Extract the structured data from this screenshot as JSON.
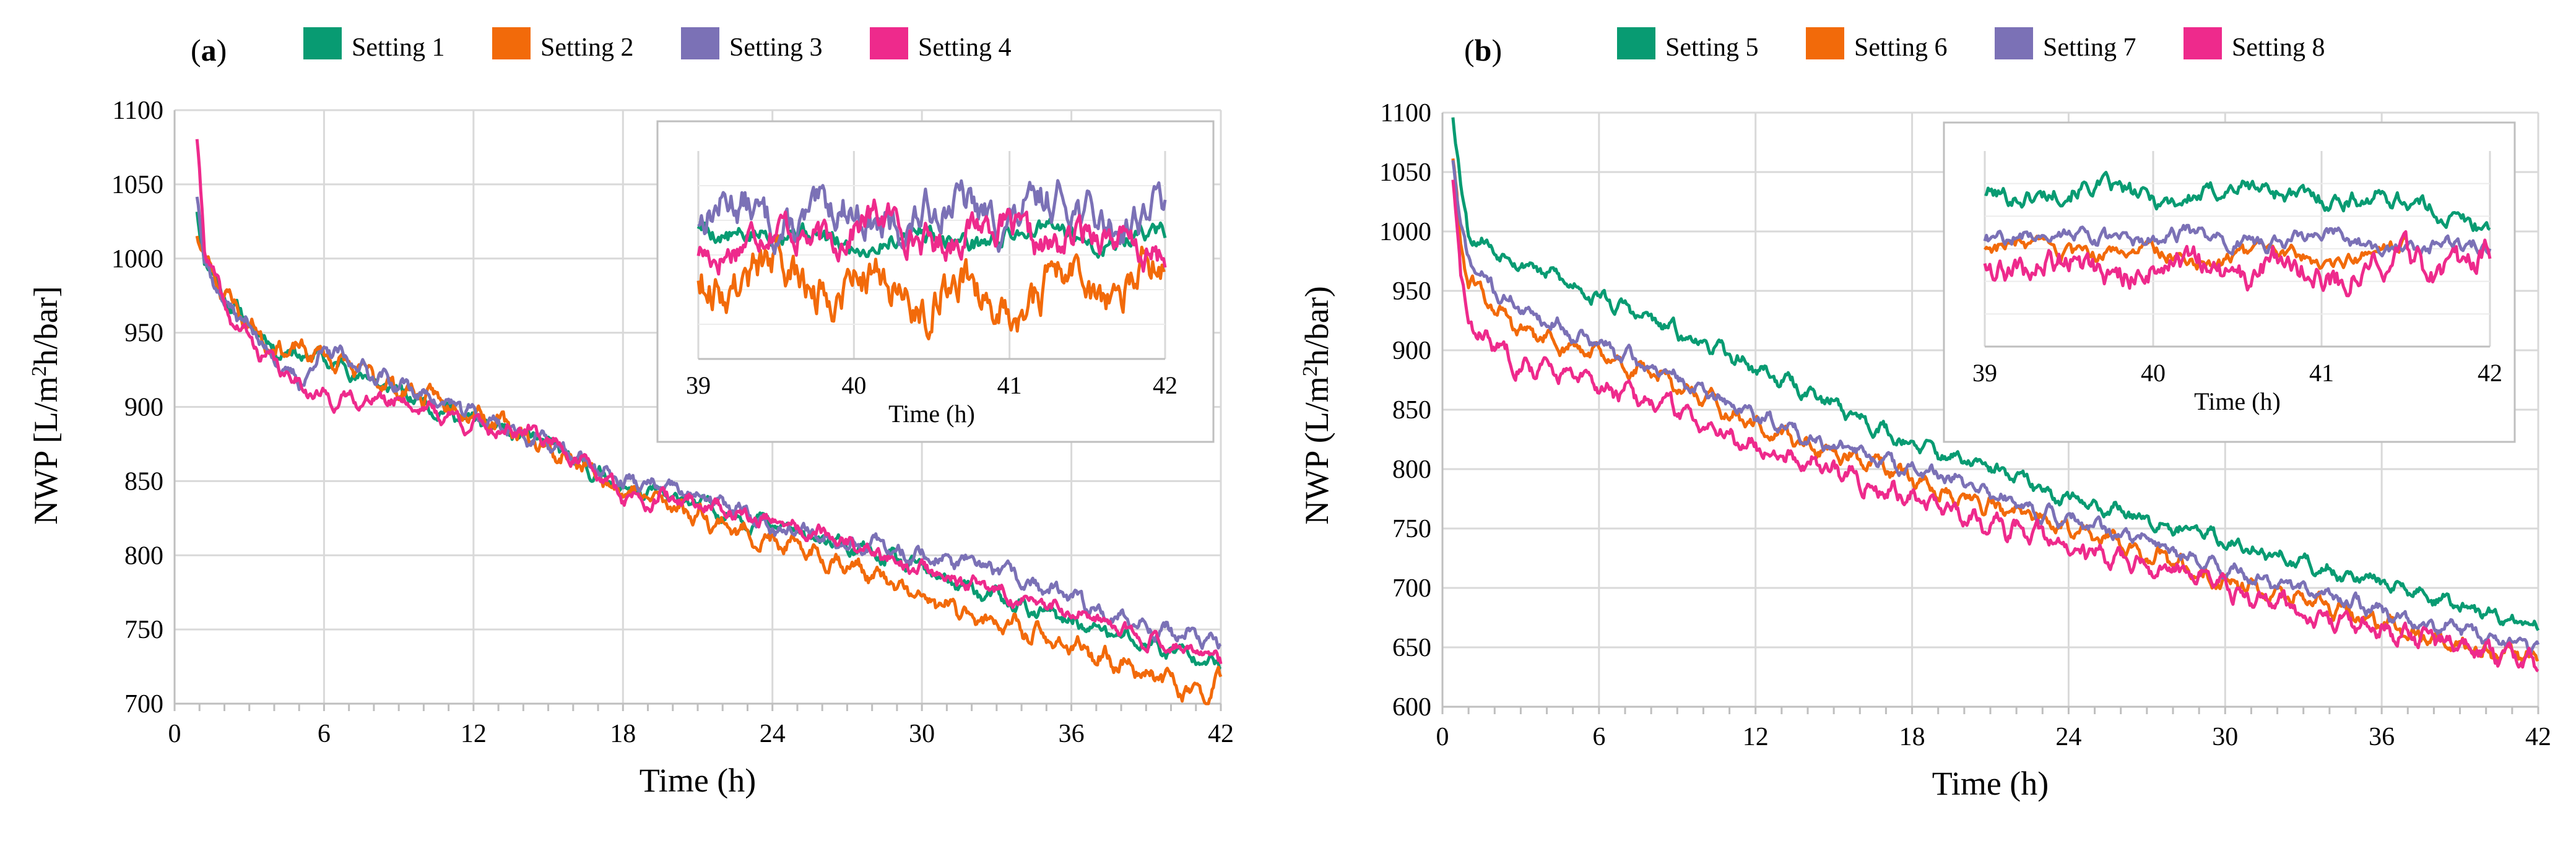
{
  "figure": {
    "description_panels": [
      "a",
      "b"
    ]
  },
  "colors": {
    "setting_1": "#089b72",
    "setting_2": "#f26a0a",
    "setting_3": "#7b71b6",
    "setting_4": "#ee2a8c",
    "setting_5": "#089b72",
    "setting_6": "#f26a0a",
    "setting_7": "#7b71b6",
    "setting_8": "#ee2a8c",
    "grid": "#d9d9d9",
    "axis": "#bfbfbf"
  },
  "chart_data": [
    {
      "type": "line",
      "panel_label": "a",
      "xlabel": "Time (h)",
      "ylabel_prefix": "NWP [L/m",
      "ylabel_sup": "2",
      "ylabel_suffix": "h/bar]",
      "xlim": [
        0,
        42
      ],
      "ylim": [
        700,
        1100
      ],
      "xticks": [
        "0",
        "6",
        "12",
        "18",
        "24",
        "30",
        "36",
        "42"
      ],
      "yticks": [
        "700",
        "750",
        "800",
        "850",
        "900",
        "950",
        "1000",
        "1050",
        "1100"
      ],
      "grid": true,
      "legend_position": "top",
      "series": [
        {
          "name": "Setting 1",
          "color_key": "setting_1",
          "seed": 11,
          "amp": 6,
          "wave": 6,
          "points": [
            [
              0.9,
              1035
            ],
            [
              1.2,
              1000
            ],
            [
              2,
              975
            ],
            [
              3,
              955
            ],
            [
              4,
              940
            ],
            [
              6,
              932
            ],
            [
              9,
              910
            ],
            [
              12,
              890
            ],
            [
              15,
              875
            ],
            [
              18,
              845
            ],
            [
              21,
              835
            ],
            [
              24,
              820
            ],
            [
              27,
              805
            ],
            [
              30,
              790
            ],
            [
              33,
              770
            ],
            [
              36,
              755
            ],
            [
              39,
              740
            ],
            [
              42,
              728
            ]
          ]
        },
        {
          "name": "Setting 2",
          "color_key": "setting_2",
          "seed": 23,
          "amp": 7,
          "wave": 7,
          "points": [
            [
              0.9,
              1020
            ],
            [
              1.2,
              1000
            ],
            [
              2,
              978
            ],
            [
              3,
              955
            ],
            [
              4,
              940
            ],
            [
              6,
              935
            ],
            [
              9,
              912
            ],
            [
              12,
              898
            ],
            [
              15,
              872
            ],
            [
              18,
              845
            ],
            [
              21,
              828
            ],
            [
              24,
              808
            ],
            [
              27,
              795
            ],
            [
              30,
              770
            ],
            [
              33,
              755
            ],
            [
              36,
              738
            ],
            [
              39,
              722
            ],
            [
              41.5,
              704
            ],
            [
              42,
              718
            ]
          ]
        },
        {
          "name": "Setting 3",
          "color_key": "setting_3",
          "seed": 37,
          "amp": 6,
          "wave": 7,
          "points": [
            [
              0.9,
              1045
            ],
            [
              1.2,
              1000
            ],
            [
              2,
              970
            ],
            [
              3,
              955
            ],
            [
              4,
              932
            ],
            [
              5,
              915
            ],
            [
              6,
              938
            ],
            [
              9,
              915
            ],
            [
              12,
              895
            ],
            [
              15,
              875
            ],
            [
              18,
              850
            ],
            [
              21,
              840
            ],
            [
              24,
              820
            ],
            [
              27,
              810
            ],
            [
              30,
              800
            ],
            [
              33,
              790
            ],
            [
              36,
              770
            ],
            [
              39,
              752
            ],
            [
              42,
              740
            ]
          ]
        },
        {
          "name": "Setting 4",
          "color_key": "setting_4",
          "seed": 41,
          "amp": 6,
          "wave": 6,
          "points": [
            [
              0.9,
              1080
            ],
            [
              1.2,
              1010
            ],
            [
              2,
              965
            ],
            [
              3,
              945
            ],
            [
              4,
              928
            ],
            [
              6,
              905
            ],
            [
              9,
              905
            ],
            [
              12,
              888
            ],
            [
              15,
              880
            ],
            [
              18,
              840
            ],
            [
              21,
              836
            ],
            [
              24,
              822
            ],
            [
              27,
              808
            ],
            [
              30,
              790
            ],
            [
              33,
              775
            ],
            [
              36,
              760
            ],
            [
              39,
              745
            ],
            [
              42,
              730
            ]
          ]
        }
      ],
      "inset": {
        "xlabel": "Time (h)",
        "xlim": [
          39,
          42
        ],
        "xticks": [
          "39",
          "40",
          "41",
          "42"
        ],
        "note": "zoomed view of last three hours, y range approx 700-760",
        "ylim": [
          700,
          760
        ],
        "series": [
          {
            "name": "Setting 1",
            "color_key": "setting_1",
            "seed": 5,
            "amp": 4,
            "wave": 8,
            "points": [
              [
                39,
                738
              ],
              [
                40,
                734
              ],
              [
                41,
                736
              ],
              [
                42,
                735
              ]
            ]
          },
          {
            "name": "Setting 2",
            "color_key": "setting_2",
            "seed": 9,
            "amp": 9,
            "wave": 10,
            "points": [
              [
                39,
                725
              ],
              [
                40,
                722
              ],
              [
                41,
                718
              ],
              [
                42,
                725
              ]
            ]
          },
          {
            "name": "Setting 3",
            "color_key": "setting_3",
            "seed": 13,
            "amp": 8,
            "wave": 9,
            "points": [
              [
                39,
                742
              ],
              [
                40,
                740
              ],
              [
                41,
                743
              ],
              [
                42,
                742
              ]
            ]
          },
          {
            "name": "Setting 4",
            "color_key": "setting_4",
            "seed": 17,
            "amp": 7,
            "wave": 9,
            "points": [
              [
                39,
                733
              ],
              [
                40,
                738
              ],
              [
                41,
                736
              ],
              [
                42,
                732
              ]
            ]
          }
        ]
      }
    },
    {
      "type": "line",
      "panel_label": "b",
      "xlabel": "Time (h)",
      "ylabel_prefix": "NWP (L/m",
      "ylabel_sup": "2",
      "ylabel_suffix": "h/bar)",
      "xlim": [
        0,
        42
      ],
      "ylim": [
        600,
        1100
      ],
      "xticks": [
        "0",
        "6",
        "12",
        "18",
        "24",
        "30",
        "36",
        "42"
      ],
      "yticks": [
        "600",
        "650",
        "700",
        "750",
        "800",
        "850",
        "900",
        "950",
        "1000",
        "1050",
        "1100"
      ],
      "grid": true,
      "legend_position": "top",
      "series": [
        {
          "name": "Setting 5",
          "color_key": "setting_5",
          "seed": 53,
          "amp": 7,
          "wave": 7,
          "points": [
            [
              0.4,
              1100
            ],
            [
              0.7,
              1040
            ],
            [
              1,
              1000
            ],
            [
              2,
              985
            ],
            [
              3,
              975
            ],
            [
              4,
              965
            ],
            [
              6,
              945
            ],
            [
              9,
              915
            ],
            [
              12,
              885
            ],
            [
              15,
              855
            ],
            [
              18,
              820
            ],
            [
              21,
              800
            ],
            [
              24,
              775
            ],
            [
              27,
              760
            ],
            [
              30,
              740
            ],
            [
              33,
              720
            ],
            [
              36,
              705
            ],
            [
              39,
              685
            ],
            [
              42,
              665
            ]
          ]
        },
        {
          "name": "Setting 6",
          "color_key": "setting_6",
          "seed": 61,
          "amp": 8,
          "wave": 7,
          "points": [
            [
              0.4,
              1060
            ],
            [
              0.7,
              990
            ],
            [
              1,
              960
            ],
            [
              2,
              935
            ],
            [
              3,
              915
            ],
            [
              6,
              895
            ],
            [
              9,
              870
            ],
            [
              12,
              835
            ],
            [
              15,
              815
            ],
            [
              18,
              790
            ],
            [
              21,
              770
            ],
            [
              24,
              750
            ],
            [
              27,
              730
            ],
            [
              30,
              705
            ],
            [
              33,
              690
            ],
            [
              36,
              670
            ],
            [
              39,
              650
            ],
            [
              42,
              640
            ]
          ]
        },
        {
          "name": "Setting 7",
          "color_key": "setting_7",
          "seed": 71,
          "amp": 7,
          "wave": 7,
          "points": [
            [
              0.4,
              1065
            ],
            [
              0.7,
              1000
            ],
            [
              1,
              975
            ],
            [
              2,
              950
            ],
            [
              3,
              935
            ],
            [
              6,
              905
            ],
            [
              9,
              875
            ],
            [
              12,
              845
            ],
            [
              15,
              820
            ],
            [
              18,
              800
            ],
            [
              21,
              780
            ],
            [
              24,
              755
            ],
            [
              27,
              740
            ],
            [
              30,
              715
            ],
            [
              33,
              698
            ],
            [
              36,
              680
            ],
            [
              39,
              665
            ],
            [
              42,
              650
            ]
          ]
        },
        {
          "name": "Setting 8",
          "color_key": "setting_8",
          "seed": 83,
          "amp": 9,
          "wave": 8,
          "points": [
            [
              0.4,
              1050
            ],
            [
              0.7,
              960
            ],
            [
              1,
              920
            ],
            [
              2,
              905
            ],
            [
              3,
              890
            ],
            [
              6,
              870
            ],
            [
              9,
              850
            ],
            [
              12,
              820
            ],
            [
              15,
              800
            ],
            [
              18,
              775
            ],
            [
              21,
              755
            ],
            [
              24,
              735
            ],
            [
              27,
              720
            ],
            [
              30,
              700
            ],
            [
              33,
              680
            ],
            [
              36,
              665
            ],
            [
              39,
              650
            ],
            [
              42,
              635
            ]
          ]
        }
      ],
      "inset": {
        "xlabel": "Time (h)",
        "xlim": [
          39,
          42
        ],
        "xticks": [
          "39",
          "40",
          "41",
          "42"
        ],
        "note": "zoomed view of last three hours, y range approx 610-700",
        "ylim": [
          610,
          700
        ],
        "series": [
          {
            "name": "Setting 5",
            "color_key": "setting_5",
            "seed": 101,
            "amp": 6,
            "wave": 7,
            "points": [
              [
                39,
                682
              ],
              [
                40,
                680
              ],
              [
                41,
                681
              ],
              [
                42,
                668
              ]
            ]
          },
          {
            "name": "Setting 6",
            "color_key": "setting_6",
            "seed": 103,
            "amp": 5,
            "wave": 8,
            "points": [
              [
                39,
                655
              ],
              [
                40,
                652
              ],
              [
                41,
                651
              ],
              [
                41.5,
                654
              ]
            ]
          },
          {
            "name": "Setting 7",
            "color_key": "setting_7",
            "seed": 107,
            "amp": 5,
            "wave": 8,
            "points": [
              [
                39,
                662
              ],
              [
                40,
                660
              ],
              [
                41,
                659
              ],
              [
                42,
                655
              ]
            ]
          },
          {
            "name": "Setting 8",
            "color_key": "setting_8",
            "seed": 109,
            "amp": 9,
            "wave": 10,
            "points": [
              [
                39,
                648
              ],
              [
                40,
                646
              ],
              [
                41,
                644
              ],
              [
                42,
                650
              ]
            ]
          }
        ]
      }
    }
  ]
}
